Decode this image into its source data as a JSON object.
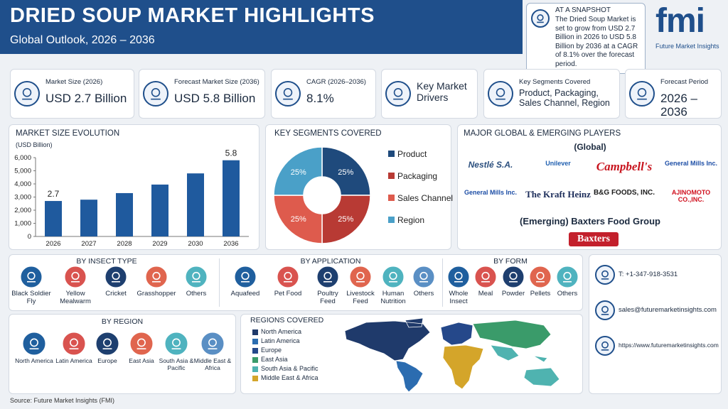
{
  "header": {
    "title": "DRIED SOUP MARKET HIGHLIGHTS",
    "subtitle": "Global Outlook, 2026 – 2036"
  },
  "snapshot": {
    "title": "AT A SNAPSHOT",
    "text": "The Dried Soup Market is set to grow from USD 2.7 Billion in 2026 to USD 5.8 Billion by 2036 at a CAGR of 8.1% over the forecast period."
  },
  "logo": {
    "name": "fmi",
    "tagline": "Future Market Insights"
  },
  "kpis": [
    {
      "label": "Market Size (2026)",
      "value": "USD 2.7 Billion"
    },
    {
      "label": "Forecast Market Size (2036)",
      "value": "USD 5.8 Billion"
    },
    {
      "label": "CAGR (2026–2036)",
      "value": "8.1%"
    },
    {
      "label": "Key Market Drivers"
    },
    {
      "label": "Key Segments Covered",
      "value": "Product, Packaging, Sales Channel, Region"
    },
    {
      "label": "Forecast Period",
      "value": "2026 – 2036"
    }
  ],
  "market_size": {
    "type": "bar",
    "title": "MARKET SIZE EVOLUTION",
    "y_label": "(USD Billion)",
    "categories": [
      "2026",
      "2027",
      "2028",
      "2029",
      "2030",
      "2036"
    ],
    "values": [
      2700,
      2800,
      3300,
      3950,
      4800,
      5800
    ],
    "value_labels": [
      "2.7",
      null,
      null,
      null,
      null,
      "5.8"
    ],
    "color": "#1f5a9e",
    "grid": false,
    "ylim": [
      0,
      6000
    ],
    "yticks": [
      0,
      {
        "value": 1000,
        "label": "1,000"
      },
      {
        "value": 2000,
        "label": "2,000"
      },
      {
        "value": 3000,
        "label": "3,000"
      },
      {
        "value": 4000,
        "label": "4,000"
      },
      {
        "value": 5000,
        "label": "5,000"
      },
      {
        "value": 6000,
        "label": "6,000"
      }
    ]
  },
  "segments": {
    "type": "pie",
    "title": "KEY SEGMENTS COVERED",
    "categories": [
      "Product",
      "Packaging",
      "Sales Channel",
      "Region"
    ],
    "values": [
      25,
      25,
      25,
      25
    ],
    "value_labels": [
      "25%",
      "25%",
      "25%",
      "25%"
    ],
    "colors": [
      "#1f4a7c",
      "#b83a34",
      "#de5b4d",
      "#4aa0c8"
    ]
  },
  "players": {
    "title": "MAJOR GLOBAL & EMERGING PLAYERS",
    "global_label": "(Global)",
    "global": [
      "Nestlé S.A.",
      "Unilever",
      "Campbell's",
      "General Mills Inc.",
      "General Mills Inc.",
      "The Kraft Heinz",
      "B&G FOODS, INC.",
      "AJINOMOTO CO.,INC."
    ],
    "emerging_label": "(Emerging) Baxters Food Group",
    "emerging": [
      "Baxters"
    ]
  },
  "by_insect_type": {
    "title": "BY INSECT TYPE",
    "items": [
      "Black Soldier Fly",
      "Yellow Mealwarm",
      "Cricket",
      "Grasshopper",
      "Others"
    ]
  },
  "by_application": {
    "title": "BY APPLICATION",
    "items": [
      "Aquafeed",
      "Pet Food",
      "Poultry Feed",
      "Livestock Feed",
      "Human Nutrition",
      "Others"
    ]
  },
  "by_form": {
    "title": "BY FORM",
    "items": [
      "Whole Insect",
      "Meal",
      "Powder",
      "Pellets",
      "Others"
    ]
  },
  "by_region": {
    "title": "BY REGION",
    "items": [
      "North America",
      "Latin America",
      "Europe",
      "East Asia",
      "South Asia & Pacific",
      "Middle East & Africa"
    ]
  },
  "regions_covered": {
    "title": "REGIONS COVERED",
    "items": [
      {
        "name": "North America",
        "color": "#1f3a6b"
      },
      {
        "name": "Latin America",
        "color": "#2b6cb0"
      },
      {
        "name": "Europe",
        "color": "#25488a"
      },
      {
        "name": "East Asia",
        "color": "#3a9b6a"
      },
      {
        "name": "South Asia & Pacific",
        "color": "#4fb3b0"
      },
      {
        "name": "Middle East & Africa",
        "color": "#d4a52a"
      }
    ]
  },
  "contact": {
    "phone": "T: +1-347-918-3531",
    "email": "sales@futuremarketinsights.com",
    "web": "https://www.futuremarketinsights.com"
  },
  "source": "Source: Future Market Insights (FMI)"
}
